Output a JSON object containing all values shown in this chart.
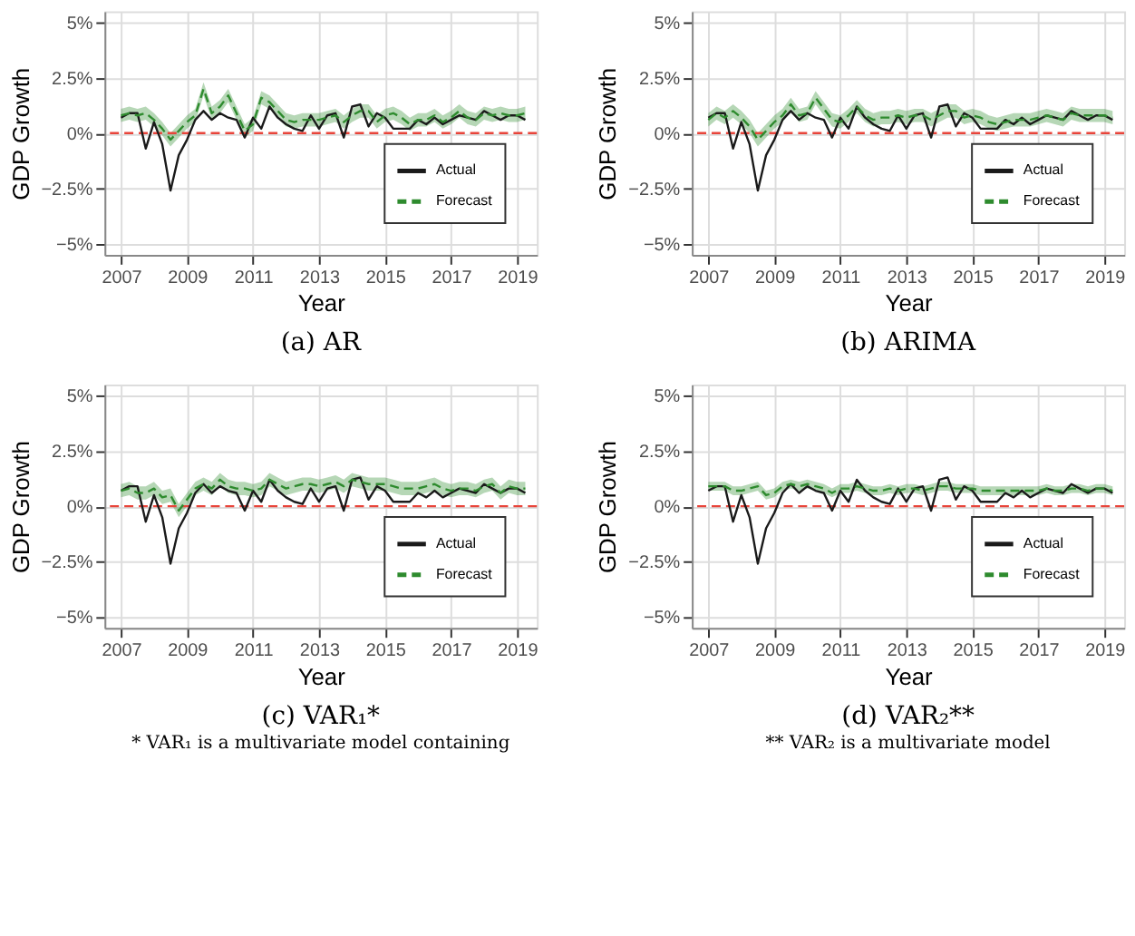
{
  "chart_data": [
    {
      "type": "line",
      "title": "(a) AR",
      "xlabel": "Year",
      "ylabel": "GDP Growth",
      "legend": "bottom right",
      "grid": true,
      "xlim": [
        2006.5,
        2019.6
      ],
      "xticks": [
        2007,
        2009,
        2011,
        2013,
        2015,
        2017,
        2019
      ],
      "ylim": [
        -5.5,
        5.5
      ],
      "yticks": [
        {
          "value": -5,
          "label": "−5%"
        },
        {
          "value": -2.5,
          "label": "−2.5%"
        },
        {
          "value": 0,
          "label": "0%"
        },
        {
          "value": 2.5,
          "label": "2.5%"
        },
        {
          "value": 5,
          "label": "5%"
        }
      ],
      "ref_lines": [
        {
          "axis": "y",
          "value": 0,
          "label": null,
          "color": "#e8443a",
          "line_style": "dashed"
        }
      ],
      "x": [
        2007,
        2007.25,
        2007.5,
        2007.75,
        2008,
        2008.25,
        2008.5,
        2008.75,
        2009,
        2009.25,
        2009.5,
        2009.75,
        2010,
        2010.25,
        2010.5,
        2010.75,
        2011,
        2011.25,
        2011.5,
        2011.75,
        2012,
        2012.25,
        2012.5,
        2012.75,
        2013,
        2013.25,
        2013.5,
        2013.75,
        2014,
        2014.25,
        2014.5,
        2014.75,
        2015,
        2015.25,
        2015.5,
        2015.75,
        2016,
        2016.25,
        2016.5,
        2016.75,
        2017,
        2017.25,
        2017.5,
        2017.75,
        2018,
        2018.25,
        2018.5,
        2018.75,
        2019,
        2019.25
      ],
      "series": [
        {
          "name": "Actual",
          "color": "#1a1a1a",
          "line_style": "solid",
          "values": [
            0.7,
            0.9,
            0.9,
            -0.7,
            0.5,
            -0.5,
            -2.6,
            -1.0,
            -0.3,
            0.6,
            1.0,
            0.6,
            0.9,
            0.7,
            0.6,
            -0.2,
            0.7,
            0.2,
            1.2,
            0.7,
            0.4,
            0.2,
            0.1,
            0.8,
            0.2,
            0.8,
            0.9,
            -0.2,
            1.2,
            1.3,
            0.3,
            0.9,
            0.7,
            0.2,
            0.2,
            0.2,
            0.6,
            0.4,
            0.7,
            0.4,
            0.6,
            0.8,
            0.7,
            0.6,
            1.0,
            0.8,
            0.6,
            0.8,
            0.8,
            0.6
          ]
        },
        {
          "name": "Forecast",
          "color": "#2e8b2e",
          "line_style": "dashed",
          "values": [
            0.8,
            0.9,
            0.8,
            0.9,
            0.6,
            0.2,
            -0.3,
            0.1,
            0.5,
            0.8,
            2.0,
            0.9,
            1.2,
            1.7,
            0.9,
            0.1,
            0.4,
            1.6,
            1.4,
            1.0,
            0.6,
            0.5,
            0.6,
            0.6,
            0.6,
            0.7,
            0.8,
            0.5,
            0.8,
            1.0,
            1.0,
            0.5,
            0.8,
            0.9,
            0.7,
            0.4,
            0.6,
            0.6,
            0.8,
            0.5,
            0.7,
            1.0,
            0.7,
            0.6,
            0.9,
            0.8,
            0.9,
            0.8,
            0.8,
            0.9
          ],
          "lower": [
            0.5,
            0.6,
            0.5,
            0.6,
            0.3,
            -0.1,
            -0.6,
            -0.2,
            0.2,
            0.5,
            1.7,
            0.6,
            0.9,
            1.4,
            0.6,
            -0.2,
            0.1,
            1.3,
            1.1,
            0.7,
            0.3,
            0.2,
            0.3,
            0.3,
            0.3,
            0.4,
            0.5,
            0.2,
            0.5,
            0.7,
            0.7,
            0.2,
            0.5,
            0.6,
            0.4,
            0.1,
            0.3,
            0.3,
            0.5,
            0.2,
            0.4,
            0.7,
            0.4,
            0.3,
            0.6,
            0.5,
            0.6,
            0.5,
            0.5,
            0.6
          ],
          "upper": [
            1.1,
            1.2,
            1.1,
            1.2,
            0.9,
            0.5,
            0.0,
            0.4,
            0.8,
            1.1,
            2.3,
            1.2,
            1.5,
            2.0,
            1.2,
            0.4,
            0.7,
            1.9,
            1.7,
            1.3,
            0.9,
            0.8,
            0.9,
            0.9,
            0.9,
            1.0,
            1.1,
            0.8,
            1.1,
            1.3,
            1.3,
            0.8,
            1.1,
            1.2,
            1.0,
            0.7,
            0.9,
            0.9,
            1.1,
            0.8,
            1.0,
            1.3,
            1.0,
            0.9,
            1.2,
            1.1,
            1.2,
            1.1,
            1.1,
            1.2
          ]
        }
      ]
    },
    {
      "type": "line",
      "title": "(b) ARIMA",
      "xlabel": "Year",
      "ylabel": "GDP Growth",
      "legend": "bottom right",
      "grid": true,
      "xlim": [
        2006.5,
        2019.6
      ],
      "xticks": [
        2007,
        2009,
        2011,
        2013,
        2015,
        2017,
        2019
      ],
      "ylim": [
        -5.5,
        5.5
      ],
      "yticks": [
        {
          "value": -5,
          "label": "−5%"
        },
        {
          "value": -2.5,
          "label": "−2.5%"
        },
        {
          "value": 0,
          "label": "0%"
        },
        {
          "value": 2.5,
          "label": "2.5%"
        },
        {
          "value": 5,
          "label": "5%"
        }
      ],
      "ref_lines": [
        {
          "axis": "y",
          "value": 0,
          "label": null,
          "color": "#e8443a",
          "line_style": "dashed"
        }
      ],
      "x": [
        2007,
        2007.25,
        2007.5,
        2007.75,
        2008,
        2008.25,
        2008.5,
        2008.75,
        2009,
        2009.25,
        2009.5,
        2009.75,
        2010,
        2010.25,
        2010.5,
        2010.75,
        2011,
        2011.25,
        2011.5,
        2011.75,
        2012,
        2012.25,
        2012.5,
        2012.75,
        2013,
        2013.25,
        2013.5,
        2013.75,
        2014,
        2014.25,
        2014.5,
        2014.75,
        2015,
        2015.25,
        2015.5,
        2015.75,
        2016,
        2016.25,
        2016.5,
        2016.75,
        2017,
        2017.25,
        2017.5,
        2017.75,
        2018,
        2018.25,
        2018.5,
        2018.75,
        2019,
        2019.25
      ],
      "series": [
        {
          "name": "Actual",
          "color": "#1a1a1a",
          "line_style": "solid",
          "values": [
            0.7,
            0.9,
            0.9,
            -0.7,
            0.5,
            -0.5,
            -2.6,
            -1.0,
            -0.3,
            0.6,
            1.0,
            0.6,
            0.9,
            0.7,
            0.6,
            -0.2,
            0.7,
            0.2,
            1.2,
            0.7,
            0.4,
            0.2,
            0.1,
            0.8,
            0.2,
            0.8,
            0.9,
            -0.2,
            1.2,
            1.3,
            0.3,
            0.9,
            0.7,
            0.2,
            0.2,
            0.2,
            0.6,
            0.4,
            0.7,
            0.4,
            0.6,
            0.8,
            0.7,
            0.6,
            1.0,
            0.8,
            0.6,
            0.8,
            0.8,
            0.6
          ]
        },
        {
          "name": "Forecast",
          "color": "#2e8b2e",
          "line_style": "dashed",
          "values": [
            0.6,
            0.9,
            0.7,
            1.0,
            0.7,
            0.3,
            -0.3,
            0.1,
            0.5,
            0.8,
            1.3,
            0.8,
            0.9,
            1.6,
            1.1,
            0.6,
            0.5,
            0.8,
            1.2,
            0.8,
            0.6,
            0.7,
            0.7,
            0.8,
            0.7,
            0.8,
            0.8,
            0.6,
            0.8,
            1.0,
            1.0,
            0.7,
            0.8,
            0.7,
            0.5,
            0.4,
            0.5,
            0.6,
            0.6,
            0.6,
            0.7,
            0.8,
            0.7,
            0.6,
            0.9,
            0.8,
            0.8,
            0.8,
            0.8,
            0.7
          ],
          "lower": [
            0.3,
            0.6,
            0.4,
            0.7,
            0.4,
            0.0,
            -0.6,
            -0.2,
            0.2,
            0.5,
            1.0,
            0.5,
            0.6,
            1.3,
            0.8,
            0.3,
            0.2,
            0.5,
            0.9,
            0.5,
            0.3,
            0.4,
            0.4,
            0.5,
            0.4,
            0.5,
            0.5,
            0.3,
            0.5,
            0.7,
            0.7,
            0.4,
            0.5,
            0.4,
            0.2,
            0.1,
            0.2,
            0.3,
            0.3,
            0.3,
            0.4,
            0.5,
            0.4,
            0.3,
            0.6,
            0.5,
            0.5,
            0.5,
            0.5,
            0.4
          ],
          "upper": [
            0.9,
            1.2,
            1.0,
            1.3,
            1.0,
            0.6,
            0.0,
            0.4,
            0.8,
            1.1,
            1.6,
            1.1,
            1.2,
            1.9,
            1.4,
            0.9,
            0.8,
            1.1,
            1.5,
            1.1,
            0.9,
            1.0,
            1.0,
            1.1,
            1.0,
            1.1,
            1.1,
            0.9,
            1.1,
            1.3,
            1.3,
            1.0,
            1.1,
            1.0,
            0.8,
            0.7,
            0.8,
            0.9,
            0.9,
            0.9,
            1.0,
            1.1,
            1.0,
            0.9,
            1.2,
            1.1,
            1.1,
            1.1,
            1.1,
            1.0
          ]
        }
      ]
    },
    {
      "type": "line",
      "title": "(c) VAR₁*",
      "annotations": [
        "* VAR₁ is a multivariate model containing"
      ],
      "xlabel": "Year",
      "ylabel": "GDP Growth",
      "legend": "bottom right",
      "grid": true,
      "xlim": [
        2006.5,
        2019.6
      ],
      "xticks": [
        2007,
        2009,
        2011,
        2013,
        2015,
        2017,
        2019
      ],
      "ylim": [
        -5.5,
        5.5
      ],
      "yticks": [
        {
          "value": -5,
          "label": "−5%"
        },
        {
          "value": -2.5,
          "label": "−2.5%"
        },
        {
          "value": 0,
          "label": "0%"
        },
        {
          "value": 2.5,
          "label": "2.5%"
        },
        {
          "value": 5,
          "label": "5%"
        }
      ],
      "ref_lines": [
        {
          "axis": "y",
          "value": 0,
          "label": null,
          "color": "#e8443a",
          "line_style": "dashed"
        }
      ],
      "x": [
        2007,
        2007.25,
        2007.5,
        2007.75,
        2008,
        2008.25,
        2008.5,
        2008.75,
        2009,
        2009.25,
        2009.5,
        2009.75,
        2010,
        2010.25,
        2010.5,
        2010.75,
        2011,
        2011.25,
        2011.5,
        2011.75,
        2012,
        2012.25,
        2012.5,
        2012.75,
        2013,
        2013.25,
        2013.5,
        2013.75,
        2014,
        2014.25,
        2014.5,
        2014.75,
        2015,
        2015.25,
        2015.5,
        2015.75,
        2016,
        2016.25,
        2016.5,
        2016.75,
        2017,
        2017.25,
        2017.5,
        2017.75,
        2018,
        2018.25,
        2018.5,
        2018.75,
        2019,
        2019.25
      ],
      "series": [
        {
          "name": "Actual",
          "color": "#1a1a1a",
          "line_style": "solid",
          "values": [
            0.7,
            0.9,
            0.9,
            -0.7,
            0.5,
            -0.5,
            -2.6,
            -1.0,
            -0.3,
            0.6,
            1.0,
            0.6,
            0.9,
            0.7,
            0.6,
            -0.2,
            0.7,
            0.2,
            1.2,
            0.7,
            0.4,
            0.2,
            0.1,
            0.8,
            0.2,
            0.8,
            0.9,
            -0.2,
            1.2,
            1.3,
            0.3,
            0.9,
            0.7,
            0.2,
            0.2,
            0.2,
            0.6,
            0.4,
            0.7,
            0.4,
            0.6,
            0.8,
            0.7,
            0.6,
            1.0,
            0.8,
            0.6,
            0.8,
            0.8,
            0.6
          ]
        },
        {
          "name": "Forecast",
          "color": "#2e8b2e",
          "line_style": "dashed",
          "values": [
            0.7,
            0.8,
            0.6,
            0.6,
            0.8,
            0.4,
            0.5,
            -0.2,
            0.3,
            0.8,
            1.0,
            0.8,
            1.2,
            0.9,
            0.8,
            0.8,
            0.7,
            0.8,
            1.2,
            1.0,
            0.8,
            0.9,
            1.0,
            1.0,
            0.9,
            1.0,
            1.1,
            0.9,
            1.2,
            1.1,
            1.0,
            1.0,
            1.0,
            0.9,
            0.8,
            0.8,
            0.8,
            0.9,
            1.0,
            0.8,
            0.7,
            0.8,
            0.8,
            0.7,
            0.9,
            1.0,
            0.6,
            0.9,
            0.8,
            0.8
          ],
          "lower": [
            0.4,
            0.5,
            0.3,
            0.3,
            0.5,
            0.1,
            0.2,
            -0.5,
            0.0,
            0.5,
            0.7,
            0.5,
            0.9,
            0.6,
            0.5,
            0.5,
            0.4,
            0.5,
            0.9,
            0.7,
            0.5,
            0.6,
            0.7,
            0.7,
            0.6,
            0.7,
            0.8,
            0.6,
            0.9,
            0.8,
            0.7,
            0.7,
            0.7,
            0.6,
            0.5,
            0.5,
            0.5,
            0.6,
            0.7,
            0.5,
            0.4,
            0.5,
            0.5,
            0.4,
            0.6,
            0.7,
            0.3,
            0.6,
            0.5,
            0.5
          ],
          "upper": [
            1.0,
            1.1,
            0.9,
            0.9,
            1.1,
            0.7,
            0.8,
            0.1,
            0.6,
            1.1,
            1.3,
            1.1,
            1.5,
            1.2,
            1.1,
            1.1,
            1.0,
            1.1,
            1.5,
            1.3,
            1.1,
            1.2,
            1.3,
            1.3,
            1.2,
            1.3,
            1.4,
            1.2,
            1.5,
            1.4,
            1.3,
            1.3,
            1.3,
            1.2,
            1.1,
            1.1,
            1.1,
            1.2,
            1.3,
            1.1,
            1.0,
            1.1,
            1.1,
            1.0,
            1.2,
            1.3,
            0.9,
            1.2,
            1.1,
            1.1
          ]
        }
      ]
    },
    {
      "type": "line",
      "title": "(d) VAR₂**",
      "annotations": [
        "** VAR₂ is a multivariate model"
      ],
      "xlabel": "Year",
      "ylabel": "GDP Growth",
      "legend": "bottom right",
      "grid": true,
      "xlim": [
        2006.5,
        2019.6
      ],
      "xticks": [
        2007,
        2009,
        2011,
        2013,
        2015,
        2017,
        2019
      ],
      "ylim": [
        -5.5,
        5.5
      ],
      "yticks": [
        {
          "value": -5,
          "label": "−5%"
        },
        {
          "value": -2.5,
          "label": "−2.5%"
        },
        {
          "value": 0,
          "label": "0%"
        },
        {
          "value": 2.5,
          "label": "2.5%"
        },
        {
          "value": 5,
          "label": "5%"
        }
      ],
      "ref_lines": [
        {
          "axis": "y",
          "value": 0,
          "label": null,
          "color": "#e8443a",
          "line_style": "dashed"
        }
      ],
      "x": [
        2007,
        2007.25,
        2007.5,
        2007.75,
        2008,
        2008.25,
        2008.5,
        2008.75,
        2009,
        2009.25,
        2009.5,
        2009.75,
        2010,
        2010.25,
        2010.5,
        2010.75,
        2011,
        2011.25,
        2011.5,
        2011.75,
        2012,
        2012.25,
        2012.5,
        2012.75,
        2013,
        2013.25,
        2013.5,
        2013.75,
        2014,
        2014.25,
        2014.5,
        2014.75,
        2015,
        2015.25,
        2015.5,
        2015.75,
        2016,
        2016.25,
        2016.5,
        2016.75,
        2017,
        2017.25,
        2017.5,
        2017.75,
        2018,
        2018.25,
        2018.5,
        2018.75,
        2019,
        2019.25
      ],
      "series": [
        {
          "name": "Actual",
          "color": "#1a1a1a",
          "line_style": "solid",
          "values": [
            0.7,
            0.9,
            0.9,
            -0.7,
            0.5,
            -0.5,
            -2.6,
            -1.0,
            -0.3,
            0.6,
            1.0,
            0.6,
            0.9,
            0.7,
            0.6,
            -0.2,
            0.7,
            0.2,
            1.2,
            0.7,
            0.4,
            0.2,
            0.1,
            0.8,
            0.2,
            0.8,
            0.9,
            -0.2,
            1.2,
            1.3,
            0.3,
            0.9,
            0.7,
            0.2,
            0.2,
            0.2,
            0.6,
            0.4,
            0.7,
            0.4,
            0.6,
            0.8,
            0.7,
            0.6,
            1.0,
            0.8,
            0.6,
            0.8,
            0.8,
            0.6
          ]
        },
        {
          "name": "Forecast",
          "color": "#2e8b2e",
          "line_style": "dashed",
          "values": [
            0.9,
            0.9,
            0.9,
            0.7,
            0.7,
            0.8,
            0.9,
            0.5,
            0.6,
            0.9,
            1.0,
            0.9,
            1.0,
            0.9,
            0.8,
            0.6,
            0.8,
            0.8,
            0.9,
            0.8,
            0.7,
            0.7,
            0.8,
            0.7,
            0.8,
            0.8,
            0.7,
            0.8,
            0.9,
            0.9,
            0.8,
            0.8,
            0.8,
            0.7,
            0.7,
            0.7,
            0.7,
            0.7,
            0.7,
            0.7,
            0.7,
            0.8,
            0.7,
            0.7,
            0.8,
            0.8,
            0.7,
            0.8,
            0.8,
            0.7
          ],
          "lower": [
            0.7,
            0.7,
            0.7,
            0.5,
            0.5,
            0.6,
            0.7,
            0.3,
            0.4,
            0.7,
            0.8,
            0.7,
            0.8,
            0.7,
            0.6,
            0.4,
            0.6,
            0.6,
            0.7,
            0.6,
            0.5,
            0.5,
            0.6,
            0.5,
            0.6,
            0.6,
            0.5,
            0.6,
            0.7,
            0.7,
            0.6,
            0.6,
            0.6,
            0.5,
            0.5,
            0.5,
            0.5,
            0.5,
            0.5,
            0.5,
            0.5,
            0.6,
            0.5,
            0.5,
            0.6,
            0.6,
            0.5,
            0.6,
            0.6,
            0.5
          ],
          "upper": [
            1.1,
            1.1,
            1.1,
            0.9,
            0.9,
            1.0,
            1.1,
            0.7,
            0.8,
            1.1,
            1.2,
            1.1,
            1.2,
            1.1,
            1.0,
            0.8,
            1.0,
            1.0,
            1.1,
            1.0,
            0.9,
            0.9,
            1.0,
            0.9,
            1.0,
            1.0,
            0.9,
            1.0,
            1.1,
            1.1,
            1.0,
            1.0,
            1.0,
            0.9,
            0.9,
            0.9,
            0.9,
            0.9,
            0.9,
            0.9,
            0.9,
            1.0,
            0.9,
            0.9,
            1.0,
            1.0,
            0.9,
            1.0,
            1.0,
            0.9
          ]
        }
      ]
    }
  ]
}
